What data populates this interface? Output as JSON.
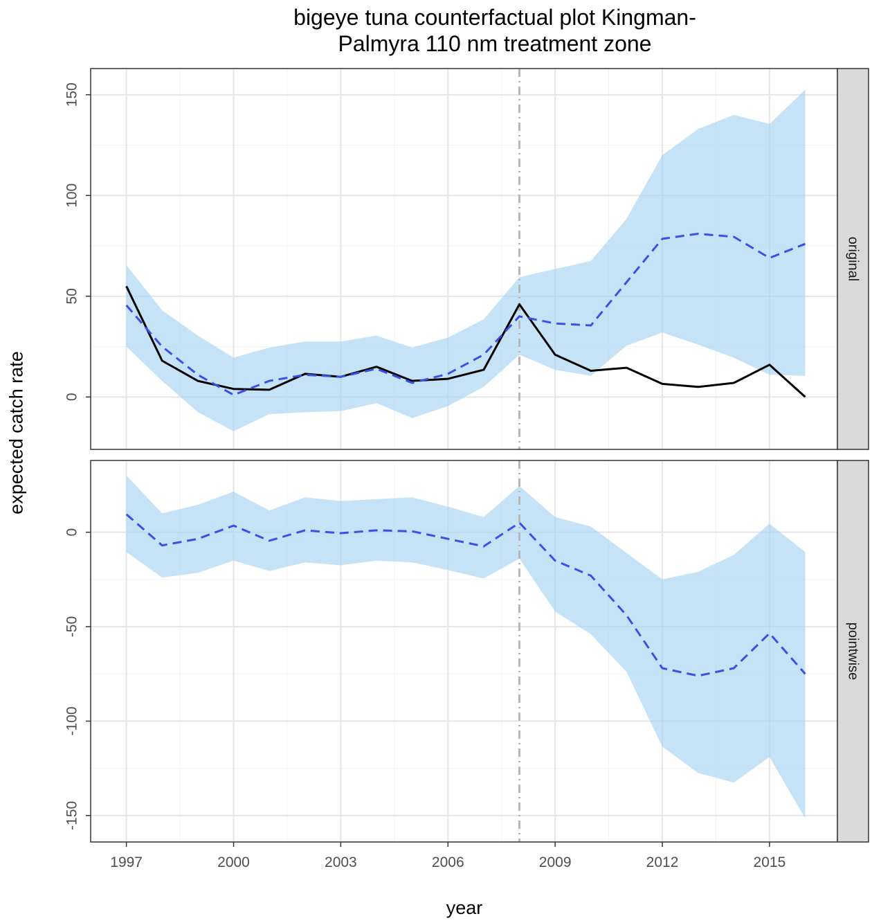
{
  "chart_data": {
    "type": "line",
    "title": "bigeye tuna counterfactual plot Kingman-Palmyra 110 nm treatment zone",
    "title_lines": [
      "bigeye tuna counterfactual plot Kingman-",
      "Palmyra 110 nm treatment zone"
    ],
    "xlabel": "year",
    "ylabel": "expected catch rate",
    "x_ticks": [
      1997,
      2000,
      2003,
      2006,
      2009,
      2012,
      2015
    ],
    "xlim": [
      1996.0,
      2016.9
    ],
    "intervention_year": 2008,
    "grid": true,
    "colors": {
      "band": "#a6d3f2",
      "prediction": "#3a50e6",
      "observed": "#000000",
      "intervention": "#b8b8b8",
      "strip": "#d9d9d9",
      "grid": "#e5e5e5"
    },
    "panels": [
      {
        "name": "original",
        "ylim": [
          -26,
          163
        ],
        "y_ticks": [
          0,
          50,
          100,
          150
        ],
        "x": [
          1997,
          1998,
          1999,
          2000,
          2001,
          2002,
          2003,
          2004,
          2005,
          2006,
          2007,
          2008,
          2009,
          2010,
          2011,
          2012,
          2013,
          2014,
          2015,
          2016
        ],
        "observed": [
          55,
          18,
          8,
          4,
          3.6,
          11.5,
          10,
          15,
          8,
          9,
          13.5,
          46,
          21,
          13,
          14.5,
          6.5,
          5,
          7,
          16,
          0
        ],
        "predicted": [
          45.5,
          25,
          11,
          1,
          8,
          11,
          10,
          14,
          7,
          11.5,
          21,
          40,
          36.5,
          35.5,
          57,
          78.5,
          81,
          79.5,
          69,
          76
        ],
        "lower": [
          25,
          8,
          -7.5,
          -17,
          -8.5,
          -7.5,
          -7,
          -3,
          -10.5,
          -4.5,
          5,
          21,
          13.5,
          10.5,
          25.5,
          32,
          26,
          19.5,
          11,
          10.5
        ],
        "upper": [
          65.5,
          43,
          30.5,
          19.5,
          24.5,
          27.5,
          27.5,
          30.5,
          24.5,
          29.5,
          38.5,
          59.5,
          63.5,
          67.5,
          88.5,
          120,
          133,
          140,
          135.5,
          152.5
        ]
      },
      {
        "name": "pointwise",
        "ylim": [
          -164,
          38
        ],
        "y_ticks": [
          0,
          -50,
          -100,
          -150
        ],
        "x": [
          1997,
          1998,
          1999,
          2000,
          2001,
          2002,
          2003,
          2004,
          2005,
          2006,
          2007,
          2008,
          2009,
          2010,
          2011,
          2012,
          2013,
          2014,
          2015,
          2016
        ],
        "predicted": [
          9.5,
          -7,
          -3.5,
          3.5,
          -4.5,
          1,
          -0.5,
          1,
          0.5,
          -3.5,
          -7.5,
          5,
          -15,
          -23,
          -44,
          -72,
          -76,
          -72,
          -53.5,
          -75
        ],
        "lower": [
          -10.5,
          -24,
          -21.5,
          -15,
          -20.5,
          -16,
          -17.5,
          -15,
          -16,
          -20,
          -24.5,
          -14,
          -42,
          -54,
          -74,
          -113.5,
          -127.5,
          -132.5,
          -119,
          -151.5
        ],
        "upper": [
          30,
          10,
          14.5,
          21.5,
          11.5,
          18.5,
          16.5,
          17.5,
          18.5,
          13.5,
          8,
          24.5,
          8,
          3,
          -11,
          -25,
          -21,
          -12,
          4.5,
          -10.5
        ]
      }
    ]
  }
}
